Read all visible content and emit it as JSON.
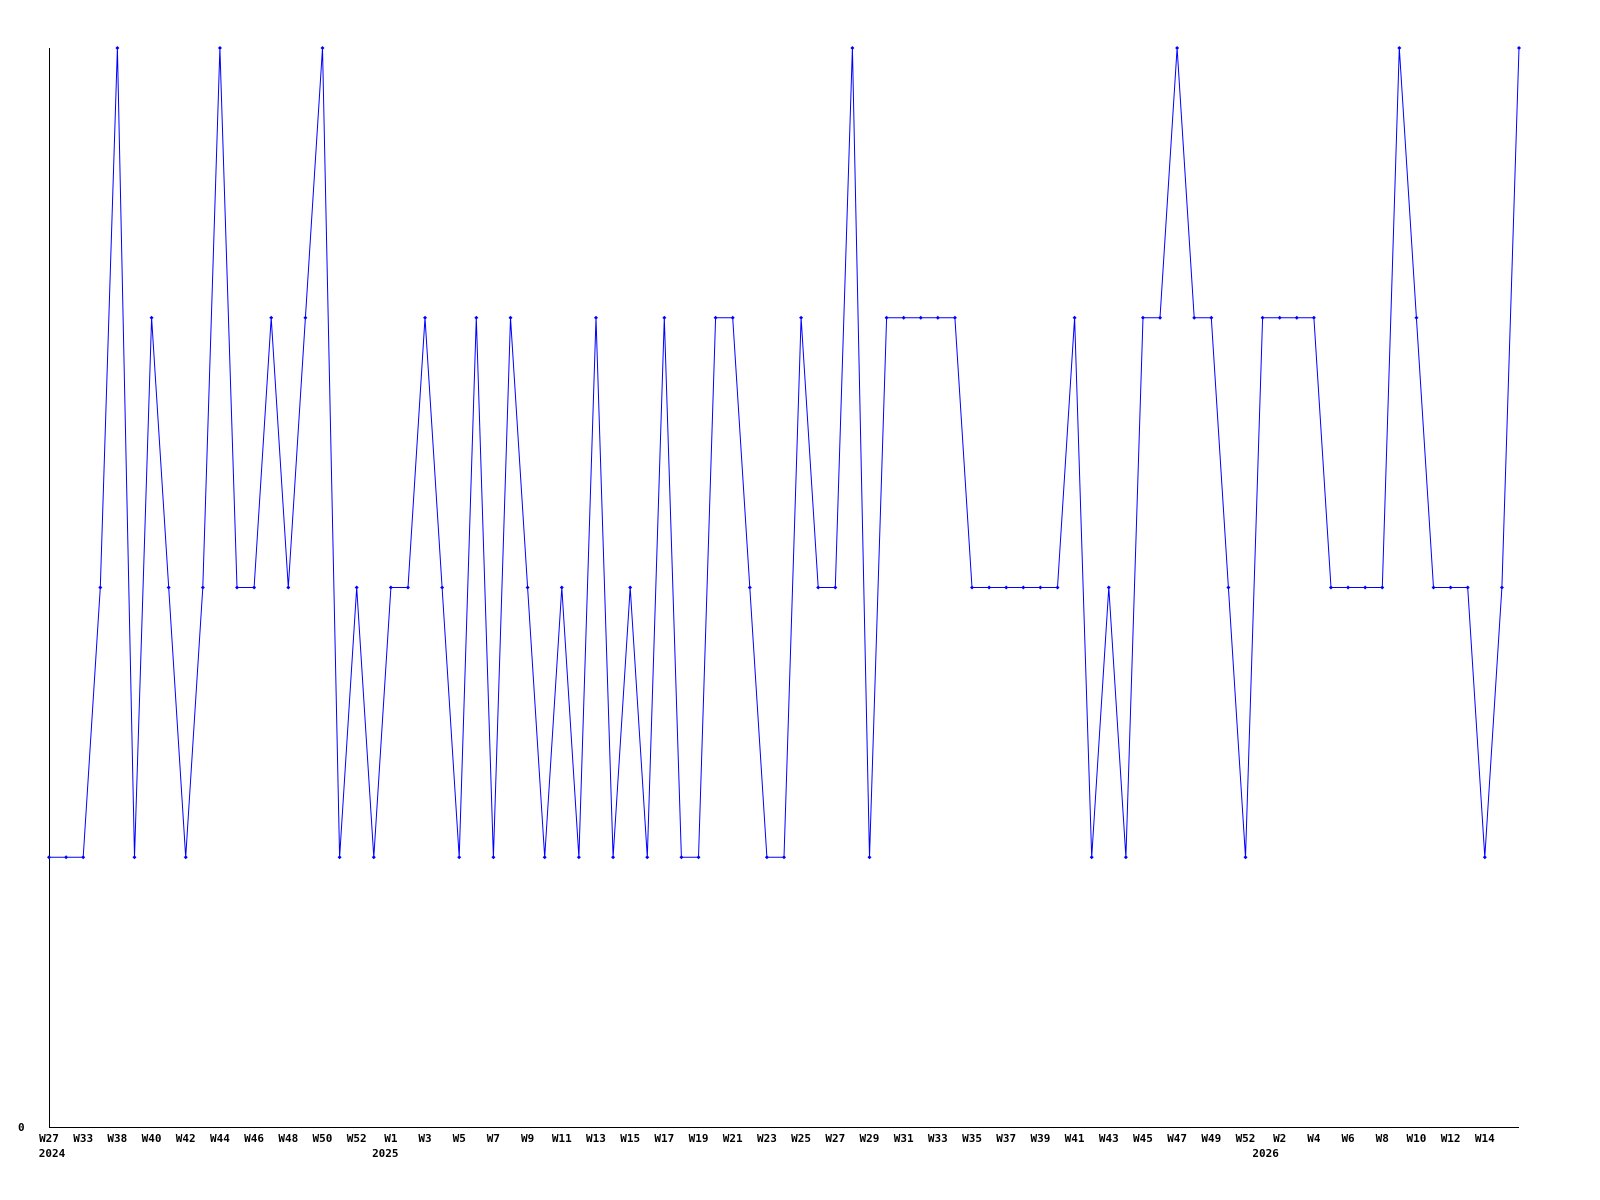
{
  "chart_data": {
    "type": "line",
    "title": "",
    "xlabel": "",
    "ylabel": "",
    "ylim": [
      0,
      4
    ],
    "y_tick_labels": [
      "0"
    ],
    "grid": false,
    "legend": "none",
    "line_color": "#0000ff",
    "axis_color": "#000000",
    "x_tick_labels": [
      "W27",
      "",
      "W33",
      "",
      "W38",
      "",
      "W40",
      "",
      "W42",
      "",
      "W44",
      "",
      "W46",
      "",
      "W48",
      "",
      "W50",
      "",
      "W52",
      "",
      "W1",
      "",
      "W3",
      "",
      "W5",
      "",
      "W7",
      "",
      "W9",
      "",
      "W11",
      "",
      "W13",
      "",
      "W15",
      "",
      "W17",
      "",
      "W19",
      "",
      "W21",
      "",
      "W23",
      "",
      "W25",
      "",
      "W27",
      "",
      "W29",
      "",
      "W31",
      "",
      "W33",
      "",
      "W35",
      "",
      "W37",
      "",
      "W39",
      "",
      "W41",
      "",
      "W43",
      "",
      "W45",
      "",
      "W47",
      "",
      "W49",
      "",
      "W52",
      "",
      "W2",
      "",
      "W4",
      "",
      "W6",
      "",
      "W8",
      "",
      "W10",
      "",
      "W12",
      "",
      "W14",
      "",
      ""
    ],
    "year_labels": [
      {
        "label": "2024",
        "at_index": 0
      },
      {
        "label": "2025",
        "at_index": 19.5
      },
      {
        "label": "2026",
        "at_index": 71
      }
    ],
    "series": [
      {
        "values": [
          1,
          1,
          1,
          2,
          4,
          1,
          3,
          2,
          1,
          2,
          4,
          2,
          2,
          3,
          2,
          3,
          4,
          1,
          2,
          1,
          2,
          2,
          3,
          2,
          1,
          3,
          1,
          3,
          2,
          1,
          2,
          1,
          3,
          1,
          2,
          1,
          3,
          1,
          1,
          3,
          3,
          2,
          1,
          1,
          3,
          2,
          2,
          4,
          1,
          3,
          3,
          3,
          3,
          3,
          2,
          2,
          2,
          2,
          2,
          2,
          3,
          1,
          2,
          1,
          3,
          3,
          4,
          3,
          3,
          2,
          1,
          3,
          3,
          3,
          3,
          2,
          2,
          2,
          2,
          4,
          3,
          2,
          2,
          2,
          1,
          2,
          4
        ]
      }
    ]
  }
}
